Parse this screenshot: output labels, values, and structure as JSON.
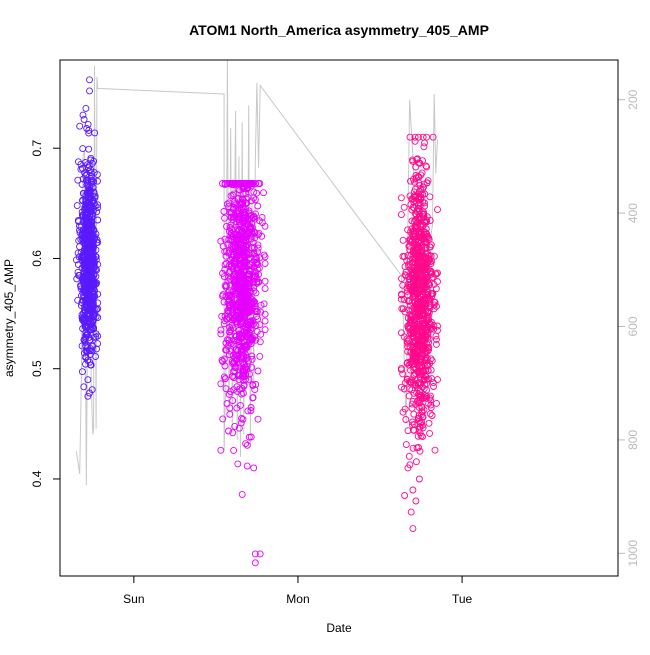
{
  "chart_data": {
    "type": "scatter",
    "title": "ATOM1 North_America asymmetry_405_AMP",
    "xlabel": "Date",
    "ylabel": "asymmetry_405_AMP",
    "x_ticks": [
      "Sun",
      "Mon",
      "Tue"
    ],
    "y_ticks": [
      0.4,
      0.5,
      0.6,
      0.7
    ],
    "y_right_ticks": [
      200,
      400,
      600,
      800,
      1000
    ],
    "xlim_days": [
      -0.45,
      2.95
    ],
    "ylim": [
      0.312,
      0.78
    ],
    "y_right_lim": [
      1040,
      130
    ],
    "grid": false,
    "legend": "none",
    "colors": {
      "cluster_a": "#5a1aff",
      "cluster_b": "#e600ff",
      "cluster_c": "#ff0a8c",
      "count_line": "#c8c8c8"
    },
    "series": [
      {
        "cluster": "a",
        "x_day_range": [
          -0.35,
          -0.22
        ],
        "density_center": -0.275,
        "y_mean": 0.6,
        "y_sd": 0.045,
        "y_min": 0.475,
        "y_max": 0.765,
        "n_points": 700,
        "outliers": [
          [
            -0.27,
            0.762
          ],
          [
            -0.27,
            0.752
          ],
          [
            -0.31,
            0.73
          ],
          [
            -0.33,
            0.72
          ],
          [
            -0.28,
            0.49
          ],
          [
            -0.27,
            0.478
          ]
        ]
      },
      {
        "cluster": "b",
        "x_day_range": [
          0.53,
          0.8
        ],
        "density_center": 0.66,
        "y_mean": 0.58,
        "y_sd": 0.055,
        "y_min": 0.4,
        "y_max": 0.668,
        "n_points": 900,
        "outliers": [
          [
            0.66,
            0.386
          ],
          [
            0.74,
            0.332
          ],
          [
            0.77,
            0.332
          ],
          [
            0.74,
            0.324
          ],
          [
            0.73,
            0.41
          ]
        ]
      },
      {
        "cluster": "c",
        "x_day_range": [
          1.63,
          1.85
        ],
        "density_center": 1.74,
        "y_mean": 0.56,
        "y_sd": 0.06,
        "y_min": 0.38,
        "y_max": 0.71,
        "n_points": 900,
        "outliers": [
          [
            1.7,
            0.355
          ],
          [
            1.69,
            0.37
          ],
          [
            1.65,
            0.385
          ],
          [
            1.7,
            0.39
          ],
          [
            1.74,
            0.4
          ],
          [
            1.67,
            0.41
          ]
        ]
      }
    ],
    "count_line": [
      [
        -0.35,
        820
      ],
      [
        -0.33,
        860
      ],
      [
        -0.32,
        700
      ],
      [
        -0.31,
        300
      ],
      [
        -0.3,
        290
      ],
      [
        -0.29,
        880
      ],
      [
        -0.28,
        520
      ],
      [
        -0.27,
        340
      ],
      [
        -0.26,
        700
      ],
      [
        -0.25,
        790
      ],
      [
        -0.245,
        780
      ],
      [
        -0.24,
        140
      ],
      [
        -0.23,
        780
      ],
      [
        -0.225,
        160
      ],
      [
        -0.22,
        180
      ],
      [
        0.55,
        190
      ],
      [
        0.55,
        820
      ],
      [
        0.56,
        700
      ],
      [
        0.57,
        130
      ],
      [
        0.58,
        760
      ],
      [
        0.59,
        250
      ],
      [
        0.6,
        780
      ],
      [
        0.61,
        500
      ],
      [
        0.62,
        220
      ],
      [
        0.63,
        800
      ],
      [
        0.64,
        300
      ],
      [
        0.65,
        830
      ],
      [
        0.66,
        240
      ],
      [
        0.67,
        790
      ],
      [
        0.68,
        350
      ],
      [
        0.69,
        700
      ],
      [
        0.7,
        210
      ],
      [
        0.71,
        810
      ],
      [
        0.72,
        380
      ],
      [
        0.73,
        700
      ],
      [
        0.74,
        310
      ],
      [
        0.75,
        170
      ],
      [
        0.76,
        320
      ],
      [
        0.77,
        175
      ],
      [
        1.63,
        510
      ],
      [
        1.64,
        560
      ],
      [
        1.65,
        700
      ],
      [
        1.66,
        770
      ],
      [
        1.67,
        420
      ],
      [
        1.68,
        200
      ],
      [
        1.7,
        300
      ],
      [
        1.72,
        420
      ],
      [
        1.74,
        360
      ],
      [
        1.76,
        400
      ],
      [
        1.79,
        480
      ],
      [
        1.82,
        420
      ],
      [
        1.83,
        190
      ],
      [
        1.84,
        330
      ],
      [
        1.85,
        270
      ]
    ]
  }
}
